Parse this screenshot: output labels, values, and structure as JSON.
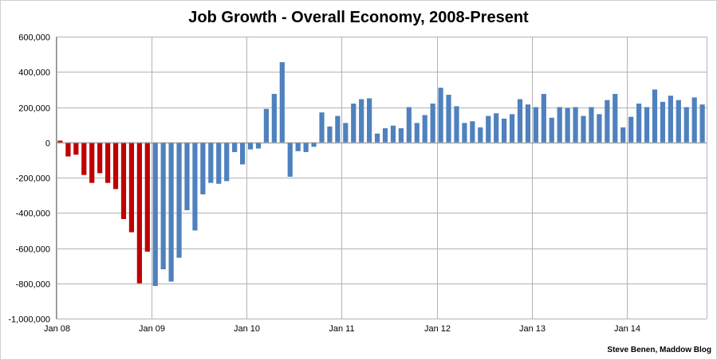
{
  "chart_data": {
    "type": "bar",
    "title": "Job Growth - Overall Economy, 2008-Present",
    "xlabel": "",
    "ylabel": "",
    "ylim": [
      -1000000,
      600000
    ],
    "y_ticks": [
      "600,000",
      "400,000",
      "200,000",
      "0",
      "-200,000",
      "-400,000",
      "-600,000",
      "-800,000",
      "-1,000,000"
    ],
    "y_tick_values": [
      600000,
      400000,
      200000,
      0,
      -200000,
      -400000,
      -600000,
      -800000,
      -1000000
    ],
    "x_tick_labels": [
      "Jan 08",
      "Jan 09",
      "Jan 10",
      "Jan 11",
      "Jan 12",
      "Jan 13",
      "Jan 14"
    ],
    "x_tick_month_index": [
      0,
      12,
      24,
      36,
      48,
      60,
      72
    ],
    "grid": "on",
    "colors": {
      "bush_era": "#c00000",
      "obama_era": "#4f81bd",
      "grid": "#b3b3b3"
    },
    "series_split_index": 12,
    "values": [
      10000,
      -80000,
      -70000,
      -185000,
      -230000,
      -175000,
      -230000,
      -265000,
      -435000,
      -510000,
      -800000,
      -620000,
      -815000,
      -720000,
      -790000,
      -655000,
      -385000,
      -500000,
      -295000,
      -230000,
      -235000,
      -220000,
      -55000,
      -125000,
      -40000,
      -35000,
      190000,
      275000,
      455000,
      -195000,
      -50000,
      -55000,
      -25000,
      170000,
      90000,
      150000,
      110000,
      220000,
      245000,
      250000,
      50000,
      80000,
      95000,
      80000,
      200000,
      110000,
      155000,
      220000,
      310000,
      270000,
      205000,
      110000,
      120000,
      85000,
      150000,
      165000,
      135000,
      160000,
      245000,
      215000,
      200000,
      275000,
      140000,
      200000,
      195000,
      200000,
      150000,
      200000,
      160000,
      240000,
      275000,
      85000,
      145000,
      220000,
      200000,
      300000,
      230000,
      265000,
      240000,
      200000,
      255000,
      215000
    ]
  },
  "credit": "Steve Benen, Maddow Blog"
}
